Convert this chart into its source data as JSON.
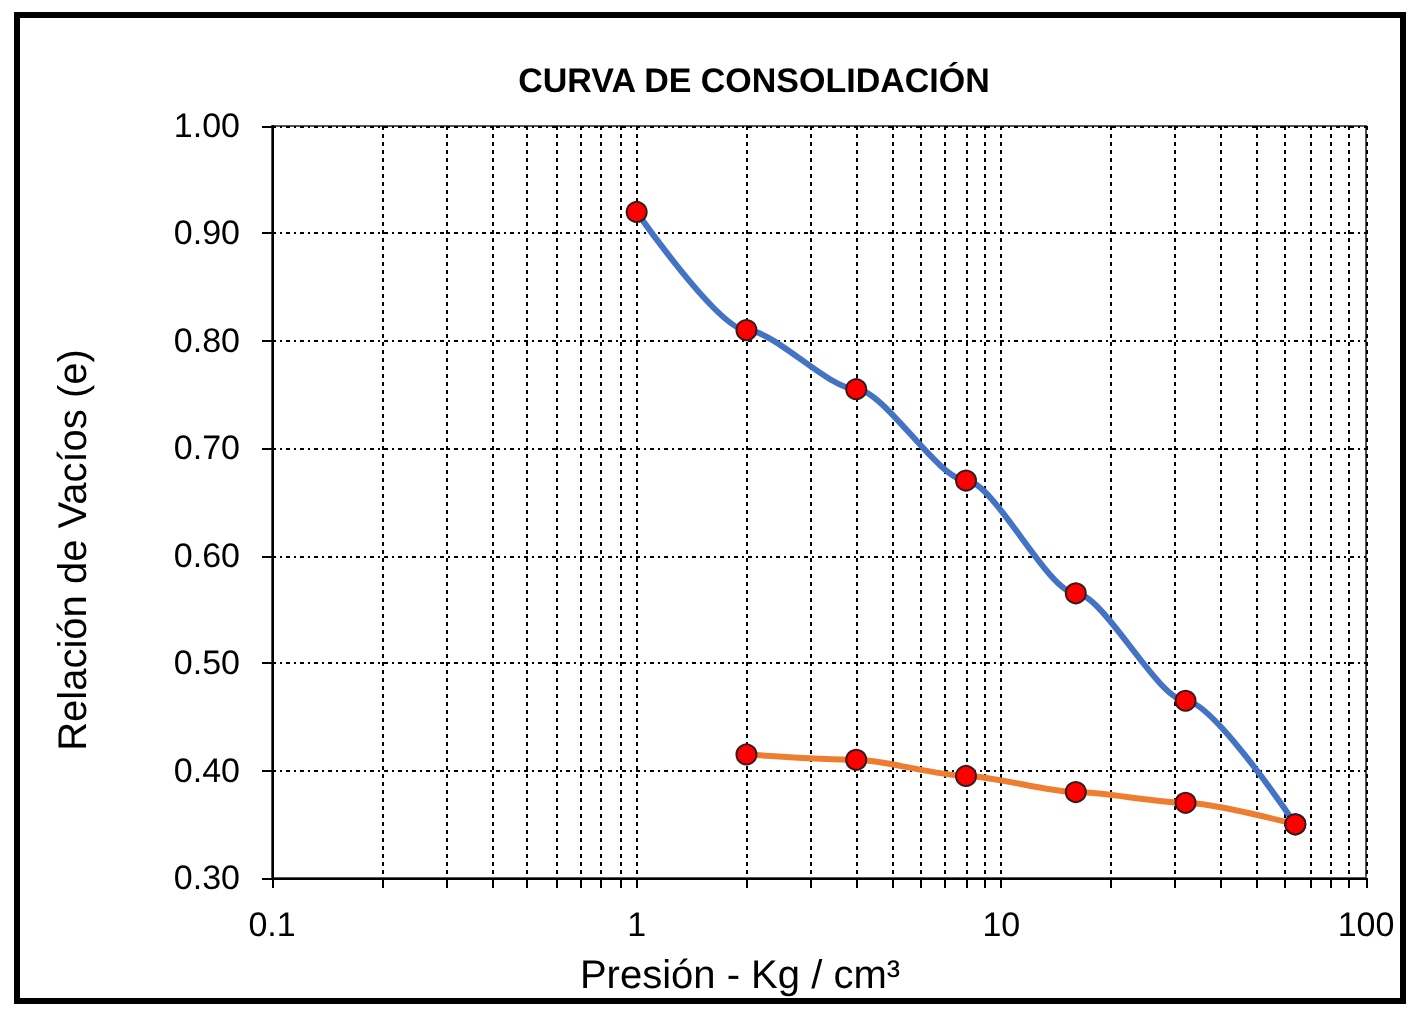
{
  "chart_data": {
    "type": "line",
    "title": "CURVA DE CONSOLIDACIÓN",
    "xlabel": "Presión - Kg / cm³",
    "ylabel": "Relación de Vacíos (e)",
    "x": [
      1,
      2,
      4,
      8,
      16,
      32,
      64
    ],
    "series": [
      {
        "color": "#4472c4",
        "colors": [
          "#ff0000",
          "#ff0000",
          "#ff0000",
          "#ff0000",
          "#ff0000",
          "#ff0000",
          "#ff0000"
        ],
        "values": [
          0.92,
          0.81,
          0.755,
          0.67,
          0.565,
          0.465,
          0.35
        ]
      },
      {
        "x": [
          2,
          4,
          8,
          16,
          32,
          64
        ],
        "color": "#ed7d31",
        "colors": [
          "#ff0000",
          "#ff0000",
          "#ff0000",
          "#ff0000",
          "#ff0000",
          "#ff0000"
        ],
        "values": [
          0.415,
          0.41,
          0.395,
          0.38,
          0.37,
          0.35
        ]
      }
    ],
    "log": "x",
    "xlim": [
      0.1,
      100
    ],
    "xticks": [
      0.1,
      {
        "value": 0.2,
        "label": null
      },
      {
        "value": 0.3,
        "label": null
      },
      {
        "value": 0.4,
        "label": null
      },
      {
        "value": 0.5,
        "label": null
      },
      {
        "value": 0.6,
        "label": null
      },
      {
        "value": 0.7,
        "label": null
      },
      {
        "value": 0.8,
        "label": null
      },
      {
        "value": 0.9,
        "label": null
      },
      1,
      {
        "value": 2,
        "label": null
      },
      {
        "value": 3,
        "label": null
      },
      {
        "value": 4,
        "label": null
      },
      {
        "value": 5,
        "label": null
      },
      {
        "value": 6,
        "label": null
      },
      {
        "value": 7,
        "label": null
      },
      {
        "value": 8,
        "label": null
      },
      {
        "value": 9,
        "label": null
      },
      10,
      {
        "value": 20,
        "label": null
      },
      {
        "value": 30,
        "label": null
      },
      {
        "value": 40,
        "label": null
      },
      {
        "value": 50,
        "label": null
      },
      {
        "value": 60,
        "label": null
      },
      {
        "value": 70,
        "label": null
      },
      {
        "value": 80,
        "label": null
      },
      {
        "value": 90,
        "label": null
      },
      100
    ],
    "ylim": [
      0.3,
      1.0
    ],
    "yticks": [
      {
        "value": 0.3,
        "label": "0.30"
      },
      {
        "value": 0.4,
        "label": "0.40"
      },
      {
        "value": 0.5,
        "label": "0.50"
      },
      {
        "value": 0.6,
        "label": "0.60"
      },
      {
        "value": 0.7,
        "label": "0.70"
      },
      {
        "value": 0.8,
        "label": "0.80"
      },
      {
        "value": 0.9,
        "label": "0.90"
      },
      {
        "value": 1.0,
        "label": "1.00"
      }
    ],
    "grid": true,
    "marker": "circle",
    "line_style": "solid"
  }
}
